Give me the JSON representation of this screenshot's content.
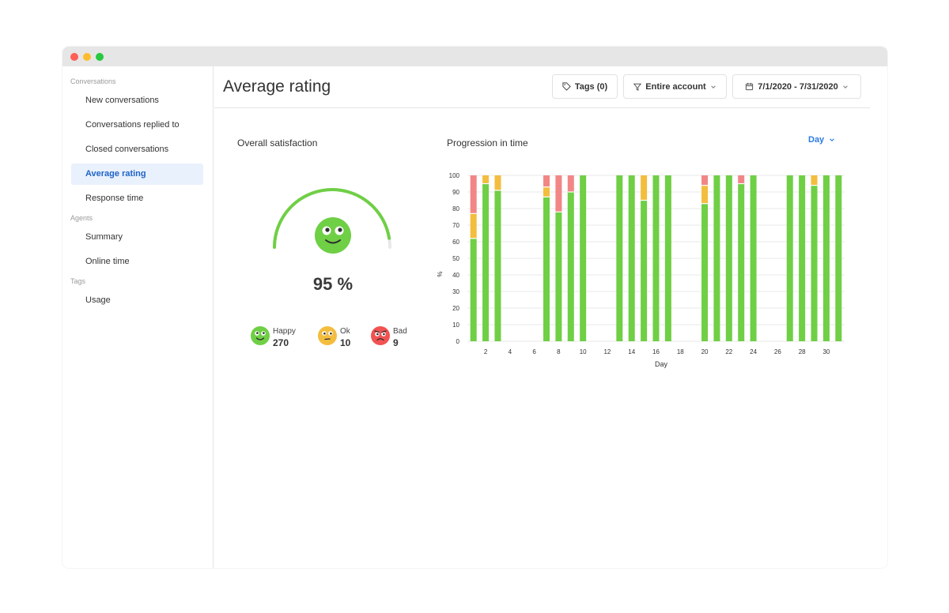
{
  "window": {
    "dot_colors": [
      "#fe5f57",
      "#febc2e",
      "#28c840"
    ]
  },
  "sidebar": {
    "sections": [
      {
        "title": "Conversations",
        "items": [
          "New conversations",
          "Conversations replied to",
          "Closed conversations",
          "Average rating",
          "Response time"
        ]
      },
      {
        "title": "Agents",
        "items": [
          "Summary",
          "Online time"
        ]
      },
      {
        "title": "Tags",
        "items": [
          "Usage"
        ]
      }
    ],
    "active": "Average rating"
  },
  "header": {
    "title": "Average rating",
    "tags_label": "Tags (0)",
    "scope_label": "Entire account",
    "date_range": "7/1/2020 - 7/31/2020"
  },
  "satisfaction": {
    "title": "Overall satisfaction",
    "score_text": "95 %",
    "gauge_fraction": 0.95,
    "legend": [
      {
        "label": "Happy",
        "count": "270",
        "color": "#6fcf45",
        "icon": "happy-face-icon"
      },
      {
        "label": "Ok",
        "count": "10",
        "color": "#f3bd3e",
        "icon": "neutral-face-icon"
      },
      {
        "label": "Bad",
        "count": "9",
        "color": "#f25252",
        "icon": "sad-face-icon"
      }
    ]
  },
  "progression": {
    "title": "Progression in time",
    "granularity": "Day"
  },
  "chart_data": {
    "type": "bar",
    "stacked": true,
    "title": "Progression in time",
    "xlabel": "Day",
    "ylabel": "%",
    "ylim": [
      0,
      100
    ],
    "y_ticks": [
      0,
      10,
      20,
      30,
      40,
      50,
      60,
      70,
      80,
      90,
      100
    ],
    "x_ticks": [
      2,
      4,
      6,
      8,
      10,
      12,
      14,
      16,
      18,
      20,
      22,
      24,
      26,
      28,
      30
    ],
    "grid": true,
    "categories": [
      1,
      2,
      3,
      4,
      5,
      6,
      7,
      8,
      9,
      10,
      11,
      12,
      13,
      14,
      15,
      16,
      17,
      18,
      19,
      20,
      21,
      22,
      23,
      24,
      25,
      26,
      27,
      28,
      29,
      30,
      31
    ],
    "series": [
      {
        "name": "Happy",
        "color": "#6fcf45",
        "values": [
          62,
          95,
          91,
          0,
          0,
          0,
          87,
          78,
          90,
          100,
          0,
          0,
          100,
          100,
          85,
          100,
          100,
          0,
          0,
          83,
          100,
          100,
          95,
          100,
          0,
          0,
          100,
          100,
          94,
          100,
          100
        ]
      },
      {
        "name": "Ok",
        "color": "#f3bd3e",
        "values": [
          15,
          5,
          9,
          0,
          0,
          0,
          6,
          0,
          0,
          0,
          0,
          0,
          0,
          0,
          15,
          0,
          0,
          0,
          0,
          11,
          0,
          0,
          0,
          0,
          0,
          0,
          0,
          0,
          6,
          0,
          0
        ]
      },
      {
        "name": "Bad",
        "color": "#f28686",
        "values": [
          23,
          0,
          0,
          0,
          0,
          0,
          7,
          22,
          10,
          0,
          0,
          0,
          0,
          0,
          0,
          0,
          0,
          0,
          0,
          6,
          0,
          0,
          5,
          0,
          0,
          0,
          0,
          0,
          0,
          0,
          0
        ]
      }
    ]
  }
}
